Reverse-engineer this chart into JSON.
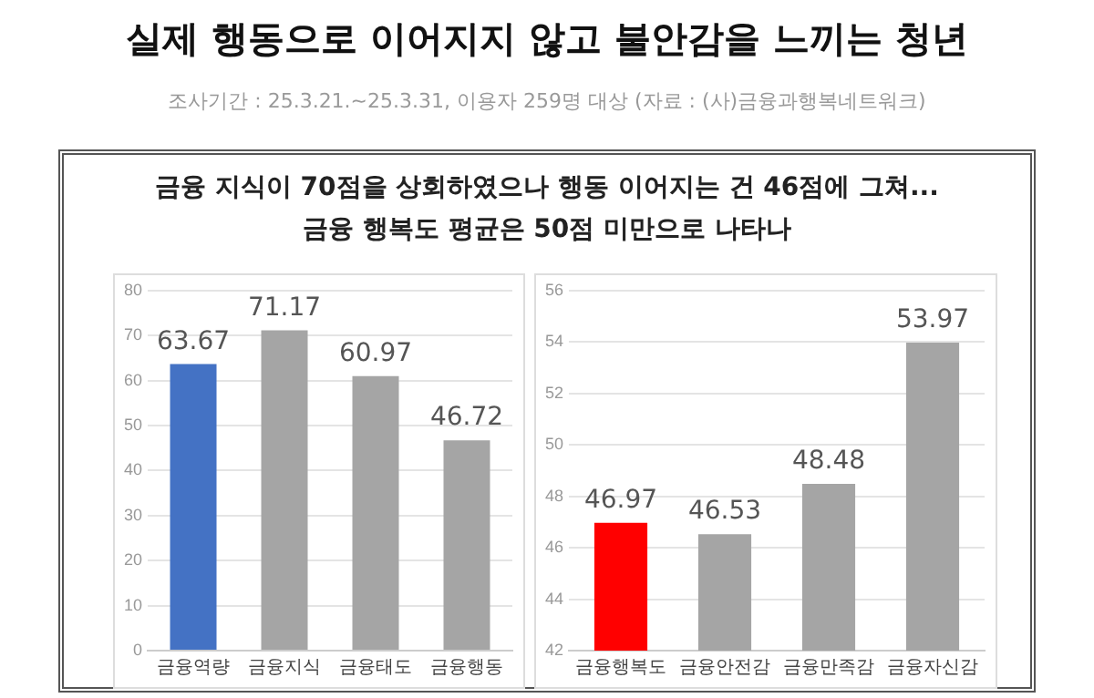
{
  "chart_data": [
    {
      "type": "bar",
      "title": "실제 행동으로 이어지지 않고 불안감을 느끼는 청년",
      "subtitle": "조사기간 : 25.3.21.~25.3.31, 이용자 259명 대상 (자료 : (사)금융과행복네트워크)",
      "annotations": [
        "금융 지식이 70점을 상회하였으나 행동 이어지는 건 46점에 그쳐...",
        "금융 행복도 평균은 50점 미만으로 나타나"
      ],
      "categories": [
        "금융역량",
        "금융지식",
        "금융태도",
        "금융행동"
      ],
      "values": [
        63.67,
        71.17,
        60.97,
        46.72
      ],
      "colors": [
        "#4472c4",
        "#a5a5a5",
        "#a5a5a5",
        "#a5a5a5"
      ],
      "ylim": [
        0,
        80
      ],
      "yticks": [
        0,
        10,
        20,
        30,
        40,
        50,
        60,
        70,
        80
      ],
      "grid": "y",
      "data_labels": true,
      "legend": false
    },
    {
      "type": "bar",
      "categories": [
        "금융행복도",
        "금융안전감",
        "금융만족감",
        "금융자신감"
      ],
      "values": [
        46.97,
        46.53,
        48.48,
        53.97
      ],
      "colors": [
        "#ff0000",
        "#a5a5a5",
        "#a5a5a5",
        "#a5a5a5"
      ],
      "ylim": [
        42,
        56
      ],
      "yticks": [
        42,
        44,
        46,
        48,
        50,
        52,
        54,
        56
      ],
      "grid": "y",
      "data_labels": true,
      "legend": false
    }
  ]
}
